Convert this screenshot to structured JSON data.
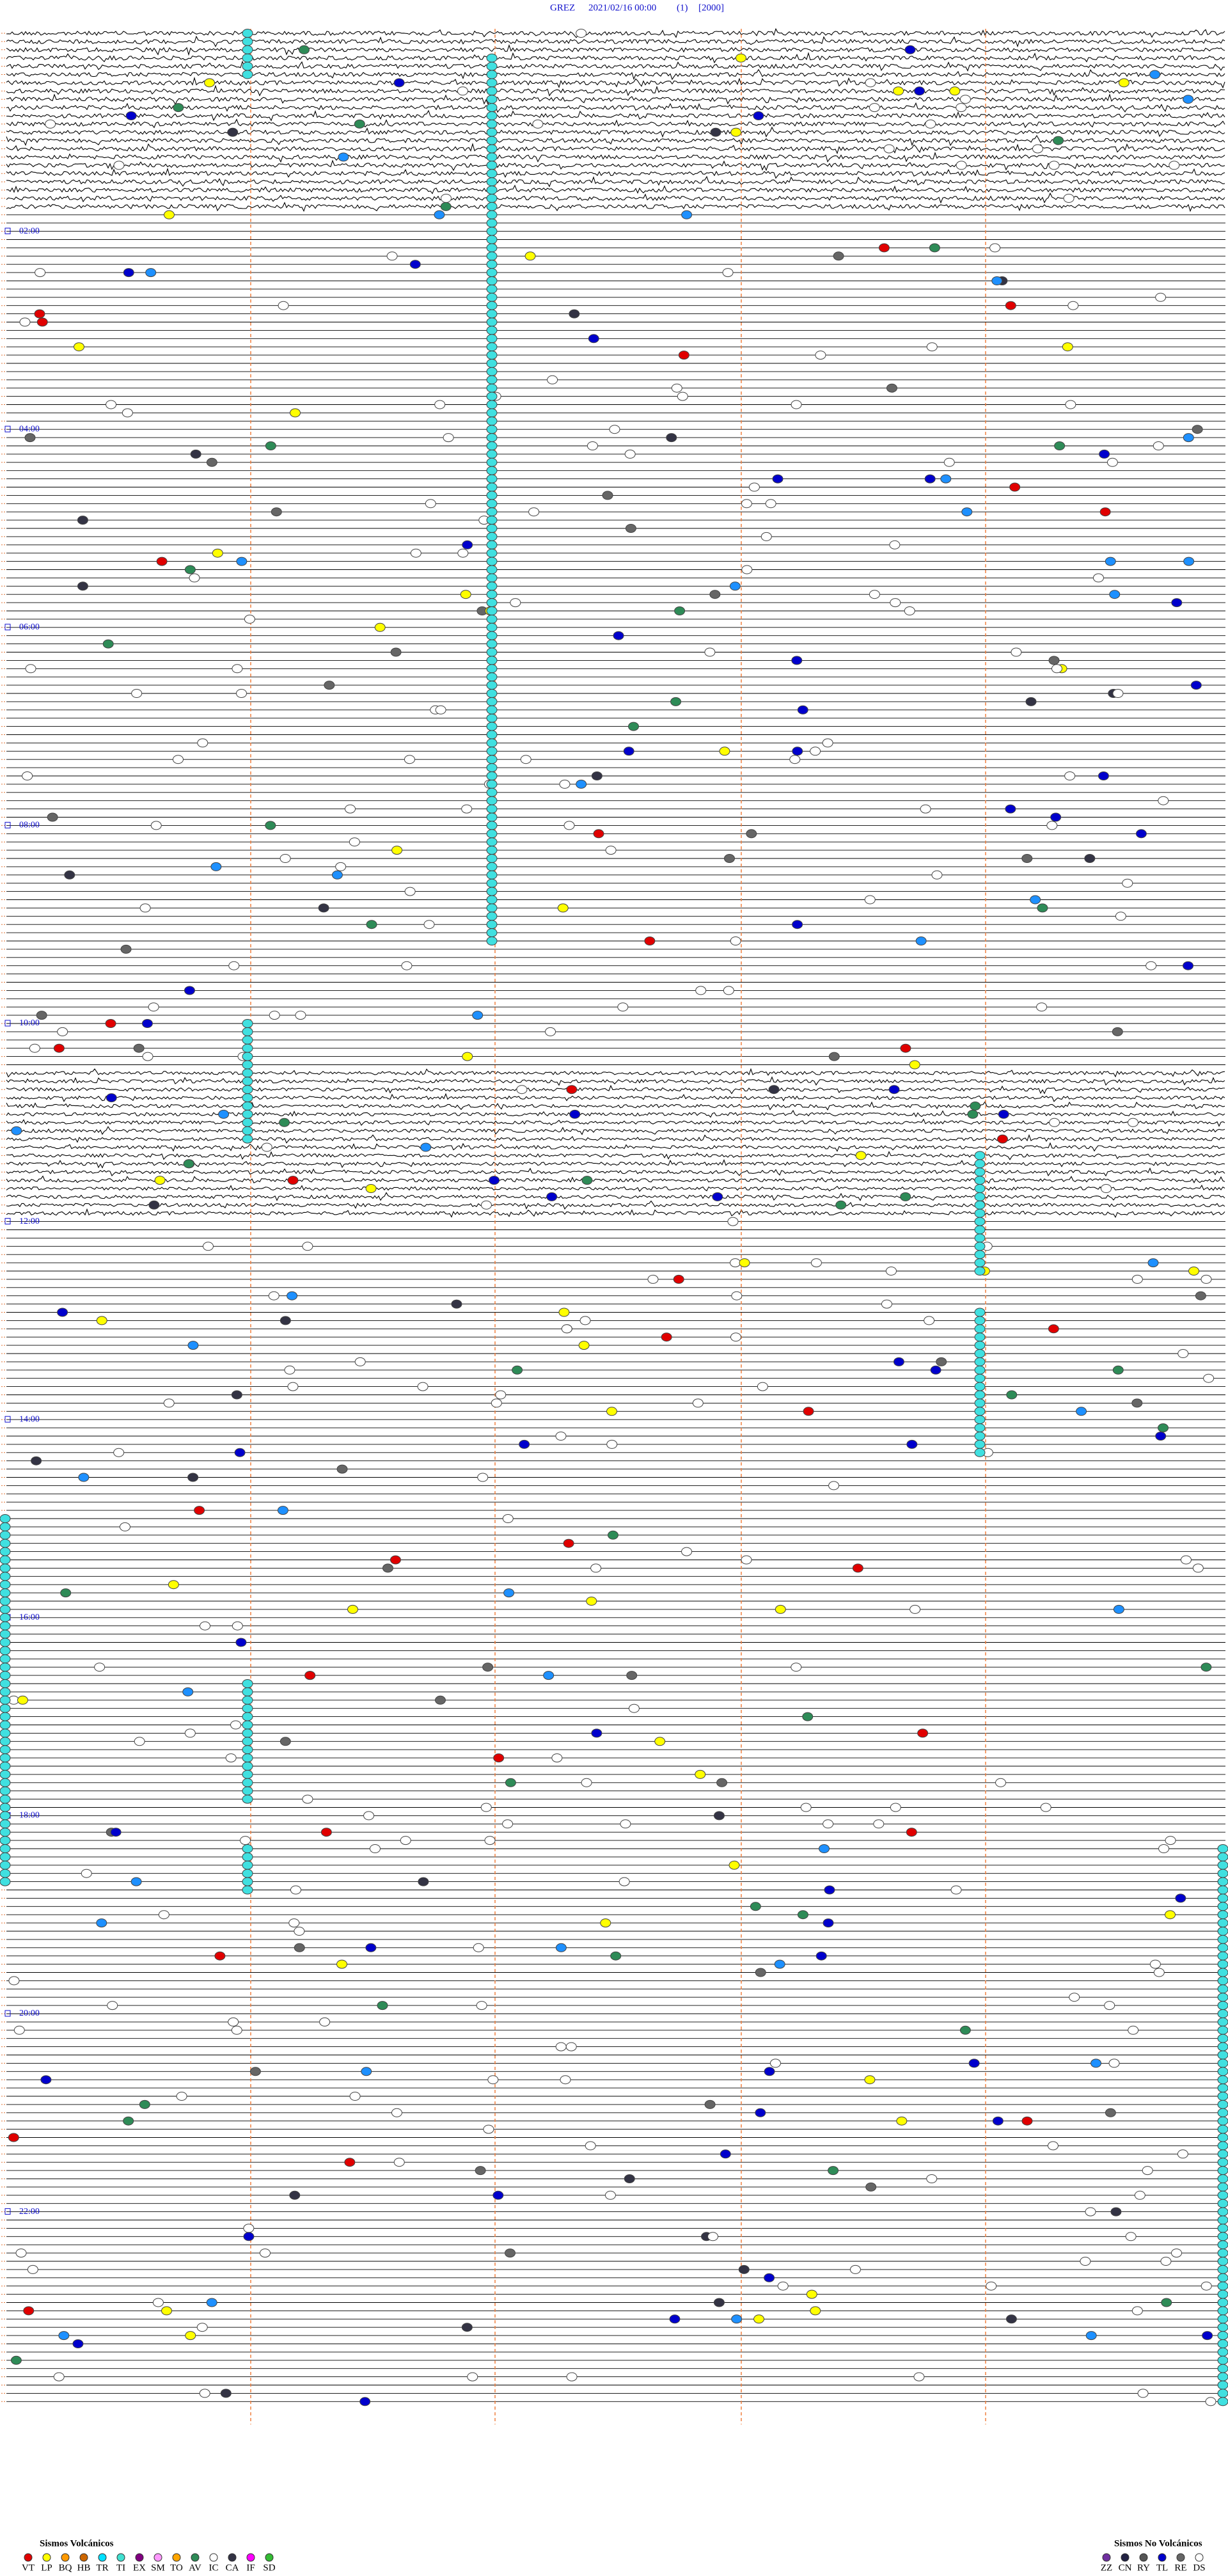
{
  "header": {
    "station": "GREZ",
    "datetime": "2021/02/16 00:00",
    "channel": "(1)",
    "scale": "[2000]"
  },
  "hour_labels": [
    "02:00",
    "04:00",
    "06:00",
    "08:00",
    "10:00",
    "12:00",
    "14:00",
    "16:00",
    "18:00",
    "20:00",
    "22:00"
  ],
  "legend": {
    "volcanic": {
      "title": "Sismos Volcánicos",
      "items": [
        {
          "code": "VT",
          "color": "#e00000"
        },
        {
          "code": "LP",
          "color": "#ffff00"
        },
        {
          "code": "BQ",
          "color": "#ff9900"
        },
        {
          "code": "HB",
          "color": "#cc6600"
        },
        {
          "code": "TR",
          "color": "#00e0ff"
        },
        {
          "code": "TI",
          "color": "#40e0d0"
        },
        {
          "code": "EX",
          "color": "#800080"
        },
        {
          "code": "SM",
          "color": "#ff99ff"
        },
        {
          "code": "TO",
          "color": "#ffa500"
        },
        {
          "code": "AV",
          "color": "#2e8b57"
        },
        {
          "code": "IC",
          "color": "#ffffff"
        },
        {
          "code": "CA",
          "color": "#333344"
        },
        {
          "code": "IF",
          "color": "#ff00ff"
        },
        {
          "code": "SD",
          "color": "#33bb33"
        }
      ]
    },
    "non_volcanic": {
      "title": "Sismos No Volcánicos",
      "items": [
        {
          "code": "ZZ",
          "color": "#7030a0"
        },
        {
          "code": "CN",
          "color": "#222244"
        },
        {
          "code": "RY",
          "color": "#555555"
        },
        {
          "code": "TL",
          "color": "#0000cc"
        },
        {
          "code": "RE",
          "color": "#666666"
        },
        {
          "code": "DS",
          "color": "#ffffff"
        }
      ]
    }
  }
}
